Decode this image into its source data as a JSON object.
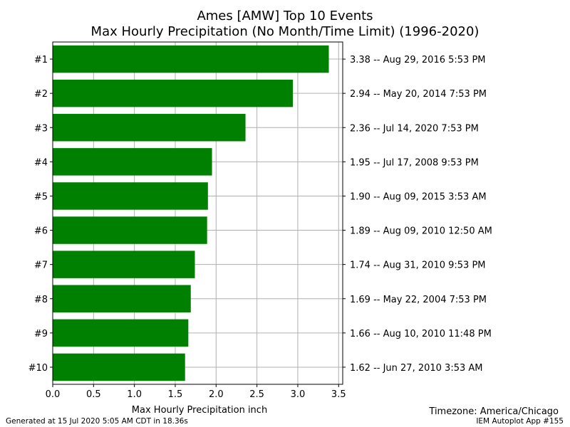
{
  "chart_data": {
    "type": "bar",
    "orientation": "horizontal",
    "title": "Ames [AMW] Top 10 Events",
    "subtitle": "Max Hourly Precipitation (No Month/Time Limit) (1996-2020)",
    "xlabel": "Max Hourly Precipitation inch",
    "xlim": [
      0,
      3.55
    ],
    "xticks": [
      "0.0",
      "0.5",
      "1.0",
      "1.5",
      "2.0",
      "2.5",
      "3.0",
      "3.5"
    ],
    "grid": true,
    "bar_color": "#008000",
    "categories": [
      "#1",
      "#2",
      "#3",
      "#4",
      "#5",
      "#6",
      "#7",
      "#8",
      "#9",
      "#10"
    ],
    "values": [
      3.38,
      2.94,
      2.36,
      1.95,
      1.9,
      1.89,
      1.74,
      1.69,
      1.66,
      1.62
    ],
    "right_labels": [
      "3.38 -- Aug 29, 2016 5:53 PM",
      "2.94 -- May 20, 2014 7:53 PM",
      "2.36 -- Jul 14, 2020 7:53 PM",
      "1.95 -- Jul 17, 2008 9:53 PM",
      "1.90 -- Aug 09, 2015 3:53 AM",
      "1.89 -- Aug 09, 2010 12:50 AM",
      "1.74 -- Aug 31, 2010 9:53 PM",
      "1.69 -- May 22, 2004 7:53 PM",
      "1.66 -- Aug 10, 2010 11:48 PM",
      "1.62 -- Jun 27, 2010 3:53 AM"
    ]
  },
  "footer": {
    "generated": "Generated at 15 Jul 2020 5:05 AM CDT in 18.36s",
    "timezone": "Timezone: America/Chicago",
    "app": "IEM Autoplot App #155"
  }
}
